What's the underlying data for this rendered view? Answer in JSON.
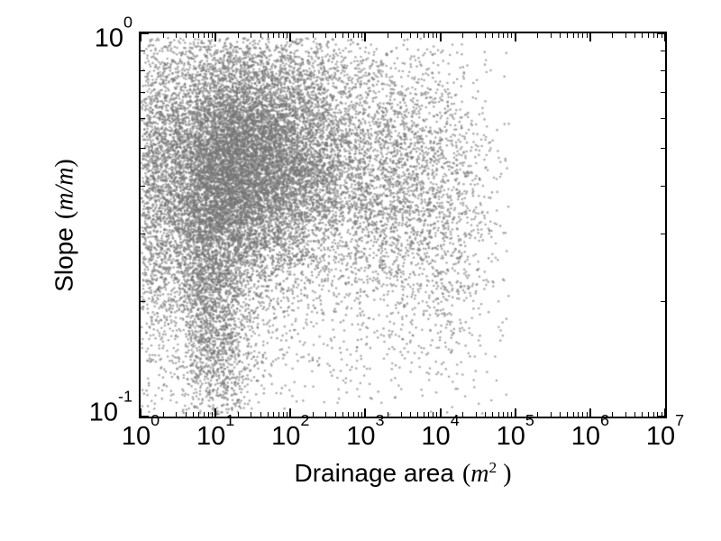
{
  "chart_data": {
    "type": "scatter",
    "title": "",
    "xlabel": {
      "name": "Drainage area",
      "unit_prefix": "(",
      "unit_math": "m",
      "unit_sup": "2",
      "unit_suffix": " )"
    },
    "ylabel": {
      "name": "Slope",
      "unit_prefix": "(",
      "unit_math": "m/m",
      "unit_suffix": ")"
    },
    "x_axis": {
      "scale": "log",
      "base": "10",
      "min_exp": 0,
      "max_exp": 7,
      "tick_exponents": [
        0,
        1,
        2,
        3,
        4,
        5,
        6,
        7
      ],
      "minor_tick_multipliers": [
        2,
        3,
        4,
        5,
        6,
        7,
        8,
        9
      ]
    },
    "y_axis": {
      "scale": "log",
      "base": "10",
      "min_exp": -1,
      "max_exp": 0,
      "tick_exponents": [
        0,
        -1
      ],
      "minor_tick_multipliers": [
        2,
        3,
        4,
        5,
        6,
        7,
        8,
        9
      ]
    },
    "grid": false,
    "legend": null,
    "colors": {
      "axis": "#000000",
      "background": "#ffffff",
      "marker": "#757575"
    },
    "marker": {
      "shape": "circle",
      "radius_px": 1.3,
      "alpha": 0.6
    },
    "point_cloud": {
      "space": "log10(drainage_area), log10(slope)",
      "seed": 20240601,
      "total_points": 19460,
      "x_data_extent_exp": [
        0,
        4.93
      ],
      "y_data_extent_exp": [
        -0.995,
        -0.012
      ],
      "clusters": [
        {
          "name": "dense-core",
          "n": 8000,
          "cx": 1.55,
          "cy": -0.33,
          "sx": 0.72,
          "sy": 0.135,
          "slant": 0,
          "clip_u": [
            0.05,
            3.5
          ]
        },
        {
          "name": "core-left",
          "n": 3000,
          "cx": 1.0,
          "cy": -0.4,
          "sx": 0.45,
          "sy": 0.18,
          "slant": 0,
          "clip_u": [
            0.05,
            3.5
          ]
        },
        {
          "name": "halo",
          "n": 2600,
          "cx": 1.5,
          "cy": -0.36,
          "sx": 1.0,
          "sy": 0.26,
          "slant": 0,
          "clip_u": [
            0.02,
            4.9
          ]
        },
        {
          "name": "low-slope-tail",
          "n": 1800,
          "cx": 0.92,
          "cy": -0.72,
          "sx": 0.26,
          "sy": 0.2,
          "slant": -0.35,
          "clip_u": [
            0.02,
            4.9
          ]
        },
        {
          "name": "right-arm",
          "n": 1400,
          "cx": 3.5,
          "cy": -0.37,
          "sx": 0.5,
          "sy": 0.15,
          "slant": 0,
          "clip_u": [
            2.2,
            4.92
          ]
        },
        {
          "name": "right-spread",
          "n": 900,
          "cx": 3.9,
          "cy": -0.55,
          "sx": 0.55,
          "sy": 0.22,
          "slant": 0,
          "clip_u": [
            2.5,
            4.92
          ]
        },
        {
          "name": "left-edge-band",
          "n": 700,
          "cx": 0.16,
          "cy": -0.42,
          "sx": 0.17,
          "sy": 0.27,
          "slant": 0,
          "clip_u": [
            0.01,
            0.6
          ]
        },
        {
          "name": "wide-sparse",
          "n": 650,
          "cx": 1.8,
          "cy": -0.5,
          "sx": 1.35,
          "sy": 0.32,
          "slant": 0,
          "clip_u": [
            0.02,
            4.9
          ]
        },
        {
          "name": "top-fringe",
          "n": 380,
          "cx": 1.6,
          "cy": -0.1,
          "sx": 0.85,
          "sy": 0.055,
          "slant": 0,
          "clip_u": [
            0.05,
            3.6
          ]
        },
        {
          "name": "far-right-outliers",
          "n": 30,
          "cx": 4.35,
          "cy": -0.22,
          "sx": 0.28,
          "sy": 0.1,
          "slant": 0,
          "clip_u": [
            3.9,
            4.9
          ]
        }
      ]
    }
  }
}
